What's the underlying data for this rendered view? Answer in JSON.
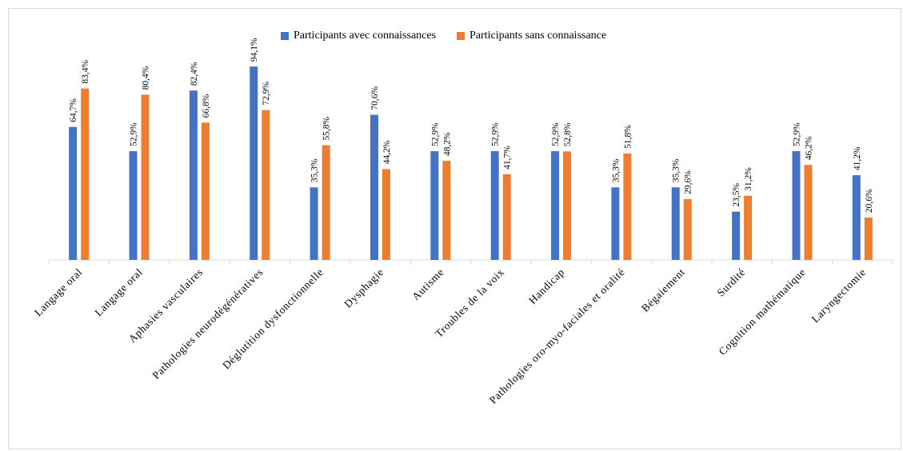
{
  "chart_data": {
    "type": "bar",
    "categories": [
      "Langage oral",
      "Langage oral",
      "Aphasies vasculaires",
      "Pathologies neurodégénératives",
      "Déglutition dysfonctionnelle",
      "Dysphagie",
      "Autisme",
      "Troubles de la voix",
      "Handicap",
      "Pathologies oro-myo-faciales et oralité",
      "Bégaiement",
      "Surdité",
      "Cognition mathématique",
      "Laryngectomie"
    ],
    "series": [
      {
        "name": "Participants avec connaissances",
        "values": [
          64.7,
          52.9,
          82.4,
          94.1,
          35.3,
          70.6,
          52.9,
          52.9,
          52.9,
          35.3,
          35.3,
          23.5,
          52.9,
          41.2
        ],
        "labels": [
          "64,7%",
          "52,9%",
          "82,4%",
          "94,1%",
          "35,3%",
          "70,6%",
          "52,9%",
          "52,9%",
          "52,9%",
          "35,3%",
          "35,3%",
          "23,5%",
          "52,9%",
          "41,2%"
        ],
        "color": "#4472C4"
      },
      {
        "name": "Participants sans connaissance",
        "values": [
          83.4,
          80.4,
          66.8,
          72.9,
          55.8,
          44.2,
          48.2,
          41.7,
          52.8,
          51.8,
          29.6,
          31.2,
          46.2,
          20.6
        ],
        "labels": [
          "83,4%",
          "80,4%",
          "66,8%",
          "72,9%",
          "55,8%",
          "44,2%",
          "48,2%",
          "41,7%",
          "52,8%",
          "51,8%",
          "29,6%",
          "31,2%",
          "46,2%",
          "20,6%"
        ],
        "color": "#ED7D31"
      }
    ],
    "ylim": [
      0,
      100
    ],
    "grid": false,
    "legend_position": "top-center"
  }
}
